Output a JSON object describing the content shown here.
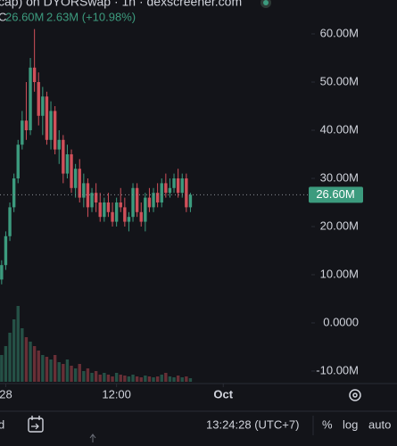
{
  "header": {
    "title": "cap) on DYORSwap · 1h · dexscreener.com",
    "ohlc_label": "C",
    "close": "26.60M",
    "change": "2.63M (+10.98%)"
  },
  "chart_data": {
    "type": "candlestick",
    "open": [
      9,
      12,
      18,
      24,
      30,
      37,
      42,
      40,
      53,
      50,
      43,
      47,
      38,
      44,
      36,
      38,
      31,
      35,
      28,
      32,
      26,
      29,
      24,
      27,
      25,
      22,
      25,
      23,
      21,
      25,
      24,
      21,
      22,
      28,
      23,
      21,
      26,
      24,
      27,
      25,
      29,
      27,
      28,
      30,
      27,
      30,
      24
    ],
    "high": [
      13,
      19,
      25,
      31,
      38,
      44,
      50,
      55,
      61,
      52,
      49,
      48,
      46,
      45,
      40,
      39,
      37,
      36,
      33,
      34,
      31,
      30,
      28,
      29,
      27,
      26,
      27,
      25,
      26,
      28,
      26,
      23,
      29,
      29,
      25,
      27,
      28,
      28,
      29,
      30,
      31,
      30,
      31,
      32,
      31,
      31,
      27
    ],
    "low": [
      8,
      11,
      17,
      23,
      29,
      36,
      38,
      39,
      48,
      41,
      39,
      37,
      36,
      35,
      33,
      29,
      30,
      27,
      26,
      25,
      24,
      22,
      23,
      23,
      21,
      21,
      22,
      20,
      20,
      23,
      20,
      19,
      21,
      22,
      20,
      19,
      23,
      23,
      24,
      24,
      26,
      26,
      27,
      26,
      26,
      23,
      23
    ],
    "close": [
      12,
      18,
      24,
      30,
      37,
      42,
      40,
      53,
      50,
      43,
      47,
      38,
      44,
      36,
      38,
      31,
      35,
      28,
      32,
      26,
      29,
      24,
      27,
      25,
      22,
      25,
      23,
      21,
      25,
      24,
      21,
      22,
      28,
      23,
      21,
      26,
      24,
      27,
      25,
      29,
      27,
      28,
      30,
      27,
      30,
      24,
      26.6
    ],
    "volume": [
      30,
      40,
      55,
      70,
      85,
      60,
      50,
      45,
      40,
      35,
      30,
      28,
      25,
      30,
      22,
      20,
      25,
      18,
      15,
      20,
      12,
      15,
      10,
      12,
      8,
      10,
      8,
      6,
      10,
      8,
      7,
      6,
      8,
      6,
      5,
      7,
      6,
      5,
      6,
      8,
      10,
      6,
      5,
      7,
      5,
      6,
      4
    ],
    "vlim": [
      0,
      100
    ],
    "up_color": "#3c9b7e",
    "down_color": "#d0505a",
    "ylim": [
      -12.6,
      67.04
    ],
    "yticks": [
      {
        "value": 60,
        "label": "60.00M"
      },
      {
        "value": 50,
        "label": "50.00M"
      },
      {
        "value": 40,
        "label": "40.00M"
      },
      {
        "value": 30,
        "label": "30.00M"
      },
      {
        "value": 20,
        "label": "20.00M"
      },
      {
        "value": 10,
        "label": "10.00M"
      },
      {
        "value": 0,
        "label": "0.0000"
      },
      {
        "value": -10,
        "label": "-10.00M"
      }
    ],
    "last_price": {
      "value": 26.6,
      "label": "26.60M"
    },
    "xlim": [
      -0.4,
      74.6
    ],
    "xticks": [
      {
        "value": 1,
        "label": "28"
      },
      {
        "value": 28,
        "label": "12:00"
      },
      {
        "value": 54,
        "label": "Oct"
      }
    ]
  },
  "toolbar": {
    "range": "d",
    "clock": "13:24:28 (UTC+7)",
    "percent": "%",
    "log": "log",
    "auto": "auto"
  }
}
